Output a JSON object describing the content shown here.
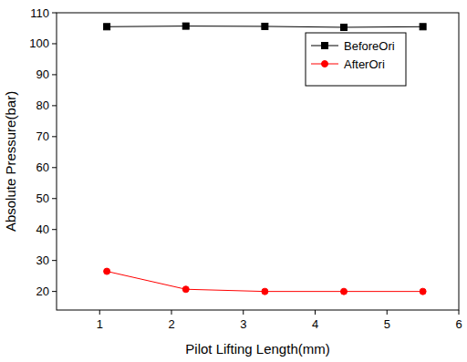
{
  "chart_data": {
    "type": "line",
    "x_label": "Pilot Lifting Length(mm)",
    "y_label": "Absolute Pressure(bar)",
    "x": [
      1.1,
      2.2,
      3.3,
      4.4,
      5.5
    ],
    "series": [
      {
        "name": "BeforeOri",
        "color": "#000000",
        "marker": "square",
        "values": [
          105.5,
          105.7,
          105.6,
          105.3,
          105.5
        ]
      },
      {
        "name": "AfterOri",
        "color": "#ff0000",
        "marker": "circle",
        "values": [
          26.5,
          20.7,
          20.0,
          20.0,
          20.0
        ]
      }
    ],
    "xlim": [
      0.4,
      6
    ],
    "xticks": [
      1,
      2,
      3,
      4,
      5,
      6
    ],
    "ylim": [
      14,
      110
    ],
    "yticks": [
      20,
      30,
      40,
      50,
      60,
      70,
      80,
      90,
      100,
      110
    ],
    "grid": false,
    "legend": "upper right"
  }
}
